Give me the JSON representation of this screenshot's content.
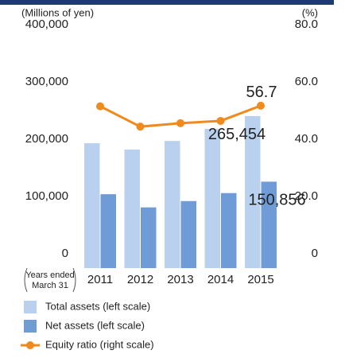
{
  "chart_data": {
    "type": "bar_line",
    "ylabel": "(Millions of yen)",
    "y2label": "(%)",
    "xlabel": [
      "Years ended",
      "March 31"
    ],
    "categories": [
      "2011",
      "2012",
      "2013",
      "2014",
      "2015"
    ],
    "ylim": [
      0,
      400000
    ],
    "yticks": [
      0,
      {
        "value": 100000,
        "label": "100,000"
      },
      {
        "value": 200000,
        "label": "200,000"
      },
      {
        "value": 300000,
        "label": "300,000"
      },
      {
        "value": 400000,
        "label": "400,000"
      }
    ],
    "y2lim": [
      0,
      80
    ],
    "y2ticks": [
      0,
      {
        "value": 20,
        "label": "20.0"
      },
      {
        "value": 40,
        "label": "40.0"
      },
      {
        "value": 60,
        "label": "60.0"
      },
      {
        "value": 80,
        "label": "80.0"
      }
    ],
    "grid": false,
    "series": [
      {
        "name": "Total assets (left scale)",
        "type": "bar",
        "color": "#b9d1ee",
        "values": [
          218000,
          207000,
          222000,
          243000,
          265454
        ],
        "value_labels": [
          null,
          null,
          null,
          null,
          "265,454"
        ]
      },
      {
        "name": "Net assets (left scale)",
        "type": "bar",
        "color": "#6f9bd6",
        "values": [
          129000,
          106000,
          117000,
          131000,
          150856
        ],
        "value_labels": [
          null,
          null,
          null,
          null,
          "150,856"
        ]
      },
      {
        "name": "Equity ratio (right scale)",
        "type": "line",
        "axis": "y2",
        "color": "#f08a1c",
        "values": [
          56.5,
          49.4,
          50.6,
          51.4,
          56.7
        ],
        "value_labels": [
          null,
          null,
          null,
          null,
          "56.7"
        ]
      }
    ]
  }
}
